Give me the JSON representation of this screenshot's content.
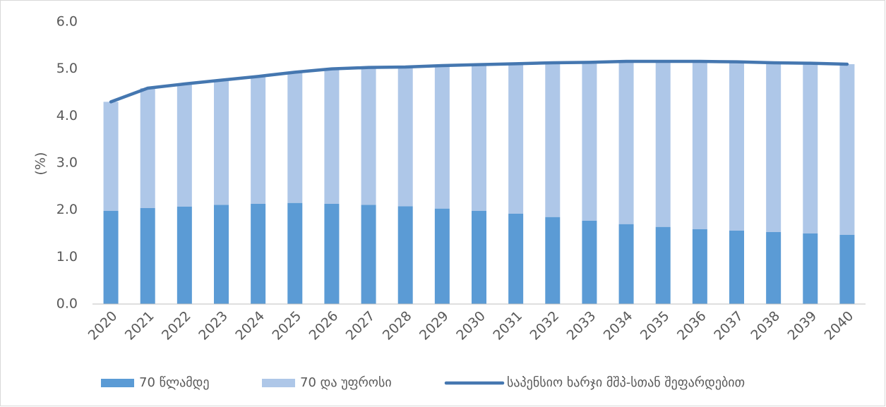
{
  "chart_data": {
    "type": "bar",
    "stacked": true,
    "y_label": "(%)",
    "categories": [
      "2020",
      "2021",
      "2022",
      "2023",
      "2024",
      "2025",
      "2026",
      "2027",
      "2028",
      "2029",
      "2030",
      "2031",
      "2032",
      "2033",
      "2034",
      "2035",
      "2036",
      "2037",
      "2038",
      "2039",
      "2040"
    ],
    "series": [
      {
        "name": "70 წლამდე",
        "type": "bar",
        "color": "#5b9bd5",
        "values": [
          1.98,
          2.04,
          2.07,
          2.11,
          2.13,
          2.15,
          2.13,
          2.11,
          2.08,
          2.03,
          1.98,
          1.92,
          1.85,
          1.77,
          1.7,
          1.64,
          1.59,
          1.56,
          1.53,
          1.5,
          1.47
        ]
      },
      {
        "name": "70 და უფროსი",
        "type": "bar",
        "color": "#aec7e8",
        "values": [
          2.32,
          2.55,
          2.61,
          2.65,
          2.71,
          2.78,
          2.87,
          2.92,
          2.96,
          3.04,
          3.11,
          3.19,
          3.28,
          3.37,
          3.46,
          3.52,
          3.57,
          3.59,
          3.6,
          3.62,
          3.63
        ]
      },
      {
        "name": "საპენსიო ხარჯი მშპ-სთან შეფარდებით",
        "type": "line",
        "color": "#4577b0",
        "values": [
          4.3,
          4.59,
          4.68,
          4.76,
          4.84,
          4.93,
          5.0,
          5.03,
          5.04,
          5.07,
          5.09,
          5.11,
          5.13,
          5.14,
          5.16,
          5.16,
          5.16,
          5.15,
          5.13,
          5.12,
          5.1
        ]
      }
    ],
    "ylim": [
      0,
      6
    ],
    "yticks": [
      {
        "value": 0,
        "label": "0.0"
      },
      {
        "value": 1,
        "label": "1.0"
      },
      {
        "value": 2,
        "label": "2.0"
      },
      {
        "value": 3,
        "label": "3.0"
      },
      {
        "value": 4,
        "label": "4.0"
      },
      {
        "value": 5,
        "label": "5.0"
      },
      {
        "value": 6,
        "label": "6.0"
      }
    ],
    "grid": false,
    "legend": "bottom"
  }
}
